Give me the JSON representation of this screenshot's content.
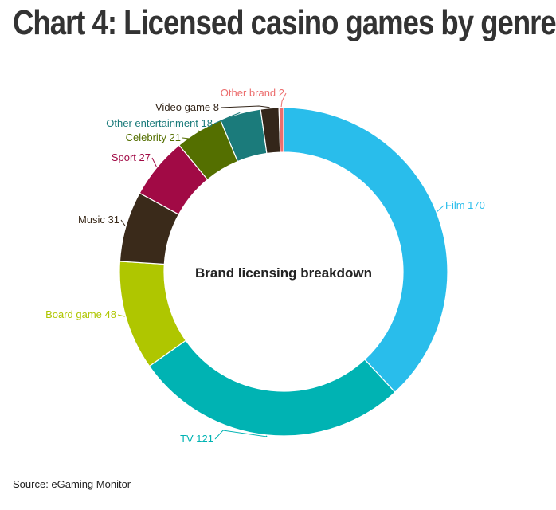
{
  "title": "Chart 4: Licensed casino games by genre",
  "source": "Source: eGaming Monitor",
  "chart_data": {
    "type": "pie",
    "title": "Chart 4: Licensed casino games by genre",
    "center_label": "Brand licensing breakdown",
    "slices": [
      {
        "category": "Film",
        "value": 170,
        "label": "Film 170",
        "color": "#29bdeb"
      },
      {
        "category": "TV",
        "value": 121,
        "label": "TV 121",
        "color": "#00b3b3"
      },
      {
        "category": "Board game",
        "value": 48,
        "label": "Board game 48",
        "color": "#afc600"
      },
      {
        "category": "Music",
        "value": 31,
        "label": "Music 31",
        "color": "#3a2a1a"
      },
      {
        "category": "Sport",
        "value": 27,
        "label": "Sport 27",
        "color": "#a10a45"
      },
      {
        "category": "Celebrity",
        "value": 21,
        "label": "Celebrity 21",
        "color": "#546f00"
      },
      {
        "category": "Other entertainment",
        "value": 18,
        "label": "Other entertainment 18",
        "color": "#1b7b7b"
      },
      {
        "category": "Video game",
        "value": 8,
        "label": "Video game 8",
        "color": "#34261a"
      },
      {
        "category": "Other brand",
        "value": 2,
        "label": "Other brand 2",
        "color": "#ec6e6e"
      }
    ]
  }
}
